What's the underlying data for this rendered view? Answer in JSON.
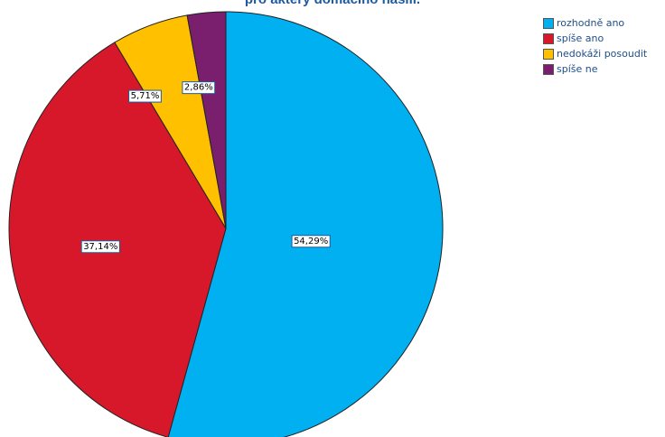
{
  "chart_data": {
    "type": "pie",
    "title": "pro aktéry domácího násilí.",
    "legend_position": "top-right",
    "slices": [
      {
        "label": "rozhodně ano",
        "value": 54.29,
        "display": "54,29%",
        "color": "#00b0f0"
      },
      {
        "label": "spíše ano",
        "value": 37.14,
        "display": "37,14%",
        "color": "#d7182a"
      },
      {
        "label": "nedokáži posoudit",
        "value": 5.71,
        "display": "5,71%",
        "color": "#ffc000"
      },
      {
        "label": "spíše ne",
        "value": 2.86,
        "display": "2,86%",
        "color": "#7a1f6e"
      }
    ]
  }
}
